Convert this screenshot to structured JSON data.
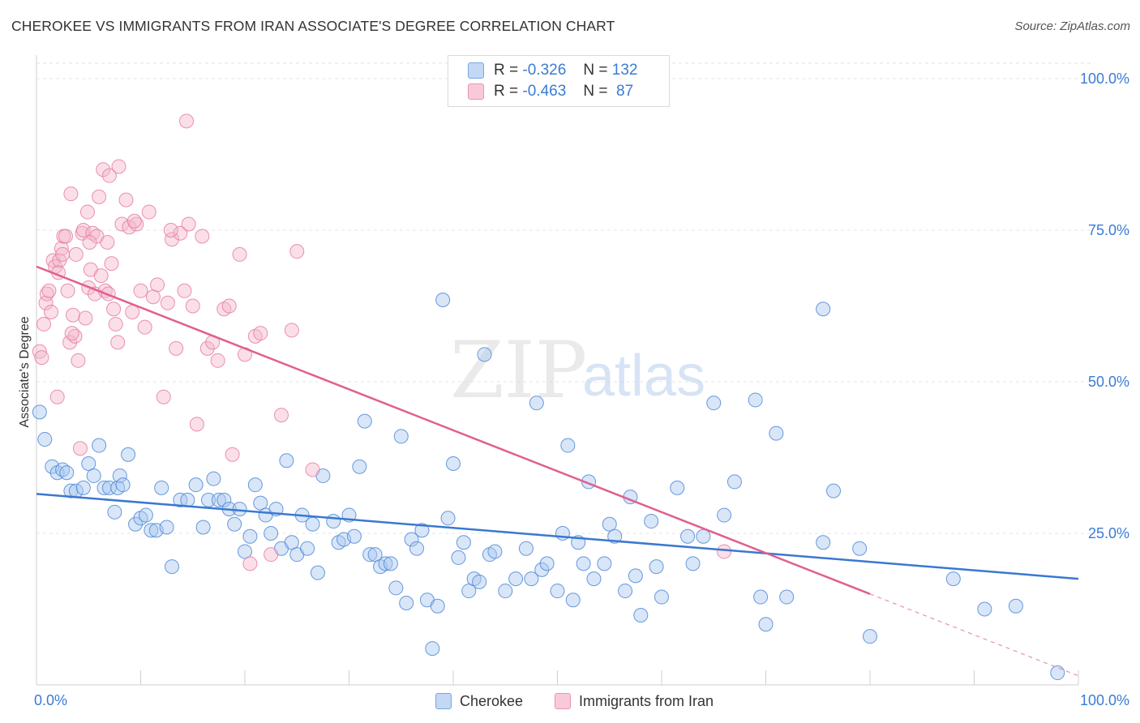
{
  "header": {
    "title": "CHEROKEE VS IMMIGRANTS FROM IRAN ASSOCIATE'S DEGREE CORRELATION CHART",
    "source": "Source: ZipAtlas.com"
  },
  "watermark": {
    "zip": "ZIP",
    "atlas": "atlas"
  },
  "legend": {
    "rows": [
      {
        "r_label": "R =",
        "r_value": "-0.326",
        "n_label": "N =",
        "n_value": "132",
        "color": "#8ab4e8"
      },
      {
        "r_label": "R =",
        "r_value": "-0.463",
        "n_label": "N =",
        "n_value": " 87",
        "color": "#f0a0bc"
      }
    ]
  },
  "bottom_legend": [
    {
      "label": "Cherokee",
      "color": "#8ab4e8"
    },
    {
      "label": "Immigrants from Iran",
      "color": "#f0a0bc"
    }
  ],
  "colors": {
    "blue": "#3a78d0",
    "pink": "#e06090",
    "blue_fill": "#a9c8ef",
    "pink_fill": "#f4b8cc",
    "axis_text": "#3a7bd5"
  },
  "chart_data": {
    "type": "scatter",
    "title": "CHEROKEE VS IMMIGRANTS FROM IRAN ASSOCIATE'S DEGREE CORRELATION CHART",
    "xlabel": "",
    "ylabel": "Associate's Degree",
    "xlim": [
      0,
      100
    ],
    "ylim": [
      0,
      100
    ],
    "x_tick_labels": [
      "0.0%",
      "100.0%"
    ],
    "y_tick_labels": [
      "25.0%",
      "50.0%",
      "75.0%",
      "100.0%"
    ],
    "y_ticks": [
      25,
      50,
      75,
      100
    ],
    "grid": true,
    "series": [
      {
        "name": "Cherokee",
        "r": -0.326,
        "n": 132,
        "trend": {
          "x": [
            0,
            100
          ],
          "y": [
            31.5,
            17.5
          ]
        },
        "points": [
          [
            0.3,
            45
          ],
          [
            0.8,
            40.5
          ],
          [
            1.5,
            36
          ],
          [
            2,
            35
          ],
          [
            2.5,
            35.5
          ],
          [
            2.9,
            35
          ],
          [
            3.3,
            32
          ],
          [
            3.8,
            32
          ],
          [
            4.5,
            32.5
          ],
          [
            5,
            36.5
          ],
          [
            5.5,
            34.5
          ],
          [
            6,
            39.5
          ],
          [
            6.5,
            32.5
          ],
          [
            7,
            32.5
          ],
          [
            7.5,
            28.5
          ],
          [
            7.8,
            32.5
          ],
          [
            8,
            34.5
          ],
          [
            8.3,
            33
          ],
          [
            8.8,
            38
          ],
          [
            9.5,
            26.5
          ],
          [
            10,
            27.5
          ],
          [
            10.5,
            28
          ],
          [
            11,
            25.5
          ],
          [
            11.5,
            25.5
          ],
          [
            12,
            32.5
          ],
          [
            12.5,
            26
          ],
          [
            13,
            19.5
          ],
          [
            13.8,
            30.5
          ],
          [
            14.5,
            30.5
          ],
          [
            15.3,
            33
          ],
          [
            16,
            26
          ],
          [
            16.5,
            30.5
          ],
          [
            17,
            34
          ],
          [
            17.5,
            30.5
          ],
          [
            18,
            30.5
          ],
          [
            18.5,
            29
          ],
          [
            19,
            26.5
          ],
          [
            19.5,
            29
          ],
          [
            20,
            22
          ],
          [
            20.5,
            24.5
          ],
          [
            21,
            33
          ],
          [
            21.5,
            30
          ],
          [
            22,
            28
          ],
          [
            22.5,
            25
          ],
          [
            23,
            29
          ],
          [
            23.5,
            22.5
          ],
          [
            24,
            37
          ],
          [
            24.5,
            23.5
          ],
          [
            25,
            21.5
          ],
          [
            25.5,
            28
          ],
          [
            26,
            22.5
          ],
          [
            26.5,
            26.5
          ],
          [
            27,
            18.5
          ],
          [
            27.5,
            34.5
          ],
          [
            28.5,
            27
          ],
          [
            29,
            23.5
          ],
          [
            29.5,
            24
          ],
          [
            30,
            28
          ],
          [
            30.5,
            24.5
          ],
          [
            31,
            36
          ],
          [
            31.5,
            43.5
          ],
          [
            32,
            21.5
          ],
          [
            32.5,
            21.5
          ],
          [
            33,
            19.5
          ],
          [
            33.5,
            20
          ],
          [
            34,
            20
          ],
          [
            34.5,
            16
          ],
          [
            35,
            41
          ],
          [
            35.5,
            13.5
          ],
          [
            36,
            24
          ],
          [
            36.5,
            22.5
          ],
          [
            37,
            25.5
          ],
          [
            37.5,
            14
          ],
          [
            38,
            6
          ],
          [
            38.5,
            13
          ],
          [
            39,
            63.5
          ],
          [
            39.5,
            27.5
          ],
          [
            40,
            36.5
          ],
          [
            40.5,
            21
          ],
          [
            41,
            23.5
          ],
          [
            41.5,
            15.5
          ],
          [
            42,
            17.5
          ],
          [
            42.5,
            17
          ],
          [
            43,
            54.5
          ],
          [
            43.5,
            21.5
          ],
          [
            44,
            22
          ],
          [
            45,
            15.5
          ],
          [
            46,
            17.5
          ],
          [
            47,
            22.5
          ],
          [
            47.5,
            17.5
          ],
          [
            48,
            46.5
          ],
          [
            48.5,
            19
          ],
          [
            49,
            20
          ],
          [
            50,
            15.5
          ],
          [
            50.5,
            25
          ],
          [
            51,
            39.5
          ],
          [
            51.5,
            14
          ],
          [
            52,
            23.5
          ],
          [
            52.5,
            20
          ],
          [
            53,
            33.5
          ],
          [
            53.5,
            17.5
          ],
          [
            54.5,
            20
          ],
          [
            55,
            26.5
          ],
          [
            55.5,
            24.5
          ],
          [
            56.5,
            15.5
          ],
          [
            57,
            31
          ],
          [
            57.5,
            18
          ],
          [
            58,
            11.5
          ],
          [
            59,
            27
          ],
          [
            59.5,
            19.5
          ],
          [
            60,
            14.5
          ],
          [
            61.5,
            32.5
          ],
          [
            62.5,
            24.5
          ],
          [
            63,
            20
          ],
          [
            65,
            46.5
          ],
          [
            66,
            28
          ],
          [
            67,
            33.5
          ],
          [
            69,
            47
          ],
          [
            69.5,
            14.5
          ],
          [
            70,
            10
          ],
          [
            71,
            41.5
          ],
          [
            72,
            14.5
          ],
          [
            75.5,
            62
          ],
          [
            75.5,
            23.5
          ],
          [
            76.5,
            32
          ],
          [
            79,
            22.5
          ],
          [
            80,
            8
          ],
          [
            88,
            17.5
          ],
          [
            91,
            12.5
          ],
          [
            94,
            13
          ],
          [
            98,
            2
          ],
          [
            64,
            24.5
          ]
        ]
      },
      {
        "name": "Immigrants from Iran",
        "r": -0.463,
        "n": 87,
        "trend": {
          "x": [
            0,
            80
          ],
          "y": [
            69,
            15
          ],
          "dashed_extension": {
            "x": [
              80,
              100
            ],
            "y": [
              15,
              1.5
            ]
          }
        },
        "points": [
          [
            0.3,
            55
          ],
          [
            0.5,
            54
          ],
          [
            0.7,
            59.5
          ],
          [
            0.9,
            63
          ],
          [
            1,
            64.5
          ],
          [
            1.2,
            65
          ],
          [
            1.4,
            61.5
          ],
          [
            1.6,
            70
          ],
          [
            1.8,
            69
          ],
          [
            2,
            47.5
          ],
          [
            2.2,
            70
          ],
          [
            2.4,
            72
          ],
          [
            2.5,
            71
          ],
          [
            2.6,
            74
          ],
          [
            2.8,
            74
          ],
          [
            3,
            65
          ],
          [
            3.2,
            56.5
          ],
          [
            3.3,
            81
          ],
          [
            3.5,
            61
          ],
          [
            3.7,
            57.5
          ],
          [
            3.8,
            71
          ],
          [
            4,
            53.5
          ],
          [
            4.2,
            39
          ],
          [
            4.4,
            74.5
          ],
          [
            4.5,
            75
          ],
          [
            4.7,
            60.5
          ],
          [
            4.9,
            78
          ],
          [
            5,
            65.5
          ],
          [
            5.2,
            68.5
          ],
          [
            5.4,
            74.5
          ],
          [
            5.6,
            64.5
          ],
          [
            5.8,
            74
          ],
          [
            6,
            80.5
          ],
          [
            6.2,
            67.5
          ],
          [
            6.4,
            85
          ],
          [
            6.6,
            65
          ],
          [
            6.8,
            73
          ],
          [
            7,
            84
          ],
          [
            7.2,
            69.5
          ],
          [
            7.4,
            62
          ],
          [
            7.6,
            59.5
          ],
          [
            7.8,
            56.5
          ],
          [
            8.2,
            76
          ],
          [
            8.6,
            80
          ],
          [
            8.9,
            75.5
          ],
          [
            9.2,
            61.5
          ],
          [
            9.6,
            76
          ],
          [
            10,
            65
          ],
          [
            10.4,
            59
          ],
          [
            10.8,
            78
          ],
          [
            11.2,
            64
          ],
          [
            11.6,
            66
          ],
          [
            12.2,
            47.5
          ],
          [
            12.6,
            63
          ],
          [
            13,
            73.5
          ],
          [
            13.4,
            55.5
          ],
          [
            13.8,
            74.5
          ],
          [
            14.2,
            65
          ],
          [
            14.6,
            76
          ],
          [
            15,
            62.5
          ],
          [
            15.4,
            43
          ],
          [
            15.9,
            74
          ],
          [
            16.4,
            55.5
          ],
          [
            16.9,
            56.5
          ],
          [
            17.4,
            53.5
          ],
          [
            18,
            62
          ],
          [
            18.5,
            62.5
          ],
          [
            18.8,
            38
          ],
          [
            19.5,
            71
          ],
          [
            20,
            54.5
          ],
          [
            20.5,
            20
          ],
          [
            21,
            57.5
          ],
          [
            21.5,
            58
          ],
          [
            22.5,
            21.5
          ],
          [
            23.5,
            44.5
          ],
          [
            24.5,
            58.5
          ],
          [
            25,
            71.5
          ],
          [
            26.5,
            35.5
          ],
          [
            66,
            22
          ],
          [
            3.4,
            58
          ],
          [
            5.1,
            73
          ],
          [
            7.9,
            85.5
          ],
          [
            9.4,
            76.5
          ],
          [
            2.1,
            68
          ],
          [
            14.4,
            93
          ],
          [
            12.9,
            75
          ],
          [
            6.9,
            64.5
          ]
        ]
      }
    ]
  }
}
